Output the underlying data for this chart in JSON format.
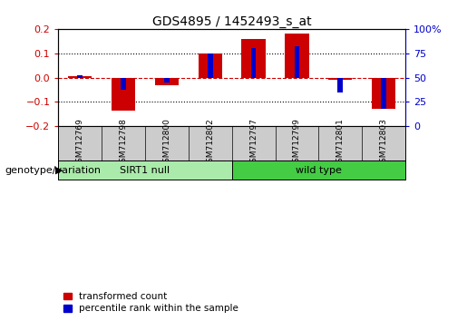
{
  "title": "GDS4895 / 1452493_s_at",
  "samples": [
    "GSM712769",
    "GSM712798",
    "GSM712800",
    "GSM712802",
    "GSM712797",
    "GSM712799",
    "GSM712801",
    "GSM712803"
  ],
  "red_values": [
    0.005,
    -0.135,
    -0.03,
    0.1,
    0.16,
    0.182,
    -0.01,
    -0.13
  ],
  "blue_pct": [
    52,
    37,
    45,
    75,
    80,
    82,
    35,
    18
  ],
  "ylim": [
    -0.2,
    0.2
  ],
  "y2lim": [
    0,
    100
  ],
  "yticks": [
    -0.2,
    -0.1,
    0.0,
    0.1,
    0.2
  ],
  "y2ticks": [
    0,
    25,
    50,
    75,
    100
  ],
  "groups": [
    {
      "label": "SIRT1 null",
      "indices": [
        0,
        1,
        2,
        3
      ],
      "color": "#aaeaaa"
    },
    {
      "label": "wild type",
      "indices": [
        4,
        5,
        6,
        7
      ],
      "color": "#44cc44"
    }
  ],
  "group_label": "genotype/variation",
  "red_color": "#CC0000",
  "blue_color": "#0000CC",
  "red_bar_width": 0.55,
  "blue_bar_width": 0.12,
  "legend_red": "transformed count",
  "legend_blue": "percentile rank within the sample",
  "background_color": "#ffffff",
  "plot_bg": "#ffffff",
  "zero_line_color": "#CC0000",
  "label_bg": "#cccccc"
}
